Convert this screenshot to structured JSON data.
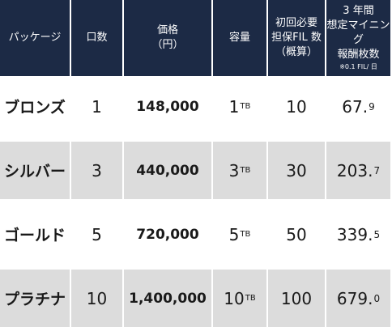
{
  "headers": {
    "package": "パッケージ",
    "units": "口数",
    "price_l1": "価格",
    "price_l2": "（円）",
    "capacity": "容量",
    "fil_l1": "初回必要",
    "fil_l2": "担保FIL 数",
    "fil_l3": "（概算）",
    "reward_l1": "3 年間",
    "reward_l2": "想定マイニング",
    "reward_l3": "報酬枚数",
    "reward_note": "※0.1 FIL/ 日"
  },
  "rows": [
    {
      "name": "ブロンズ",
      "units": "1",
      "price": "148,000",
      "capacity": "1",
      "capacity_unit": "TB",
      "fil": "10",
      "reward_int": "67.",
      "reward_dec": "9"
    },
    {
      "name": "シルバー",
      "units": "3",
      "price": "440,000",
      "capacity": "3",
      "capacity_unit": "TB",
      "fil": "30",
      "reward_int": "203.",
      "reward_dec": "7"
    },
    {
      "name": "ゴールド",
      "units": "5",
      "price": "720,000",
      "capacity": "5",
      "capacity_unit": "TB",
      "fil": "50",
      "reward_int": "339.",
      "reward_dec": "5"
    },
    {
      "name": "プラチナ",
      "units": "10",
      "price": "1,400,000",
      "capacity": "10",
      "capacity_unit": "TB",
      "fil": "100",
      "reward_int": "679.",
      "reward_dec": "0"
    }
  ],
  "colors": {
    "header_bg": "#1c2a45",
    "row_white": "#ffffff",
    "row_gray": "#dcdcdc"
  }
}
